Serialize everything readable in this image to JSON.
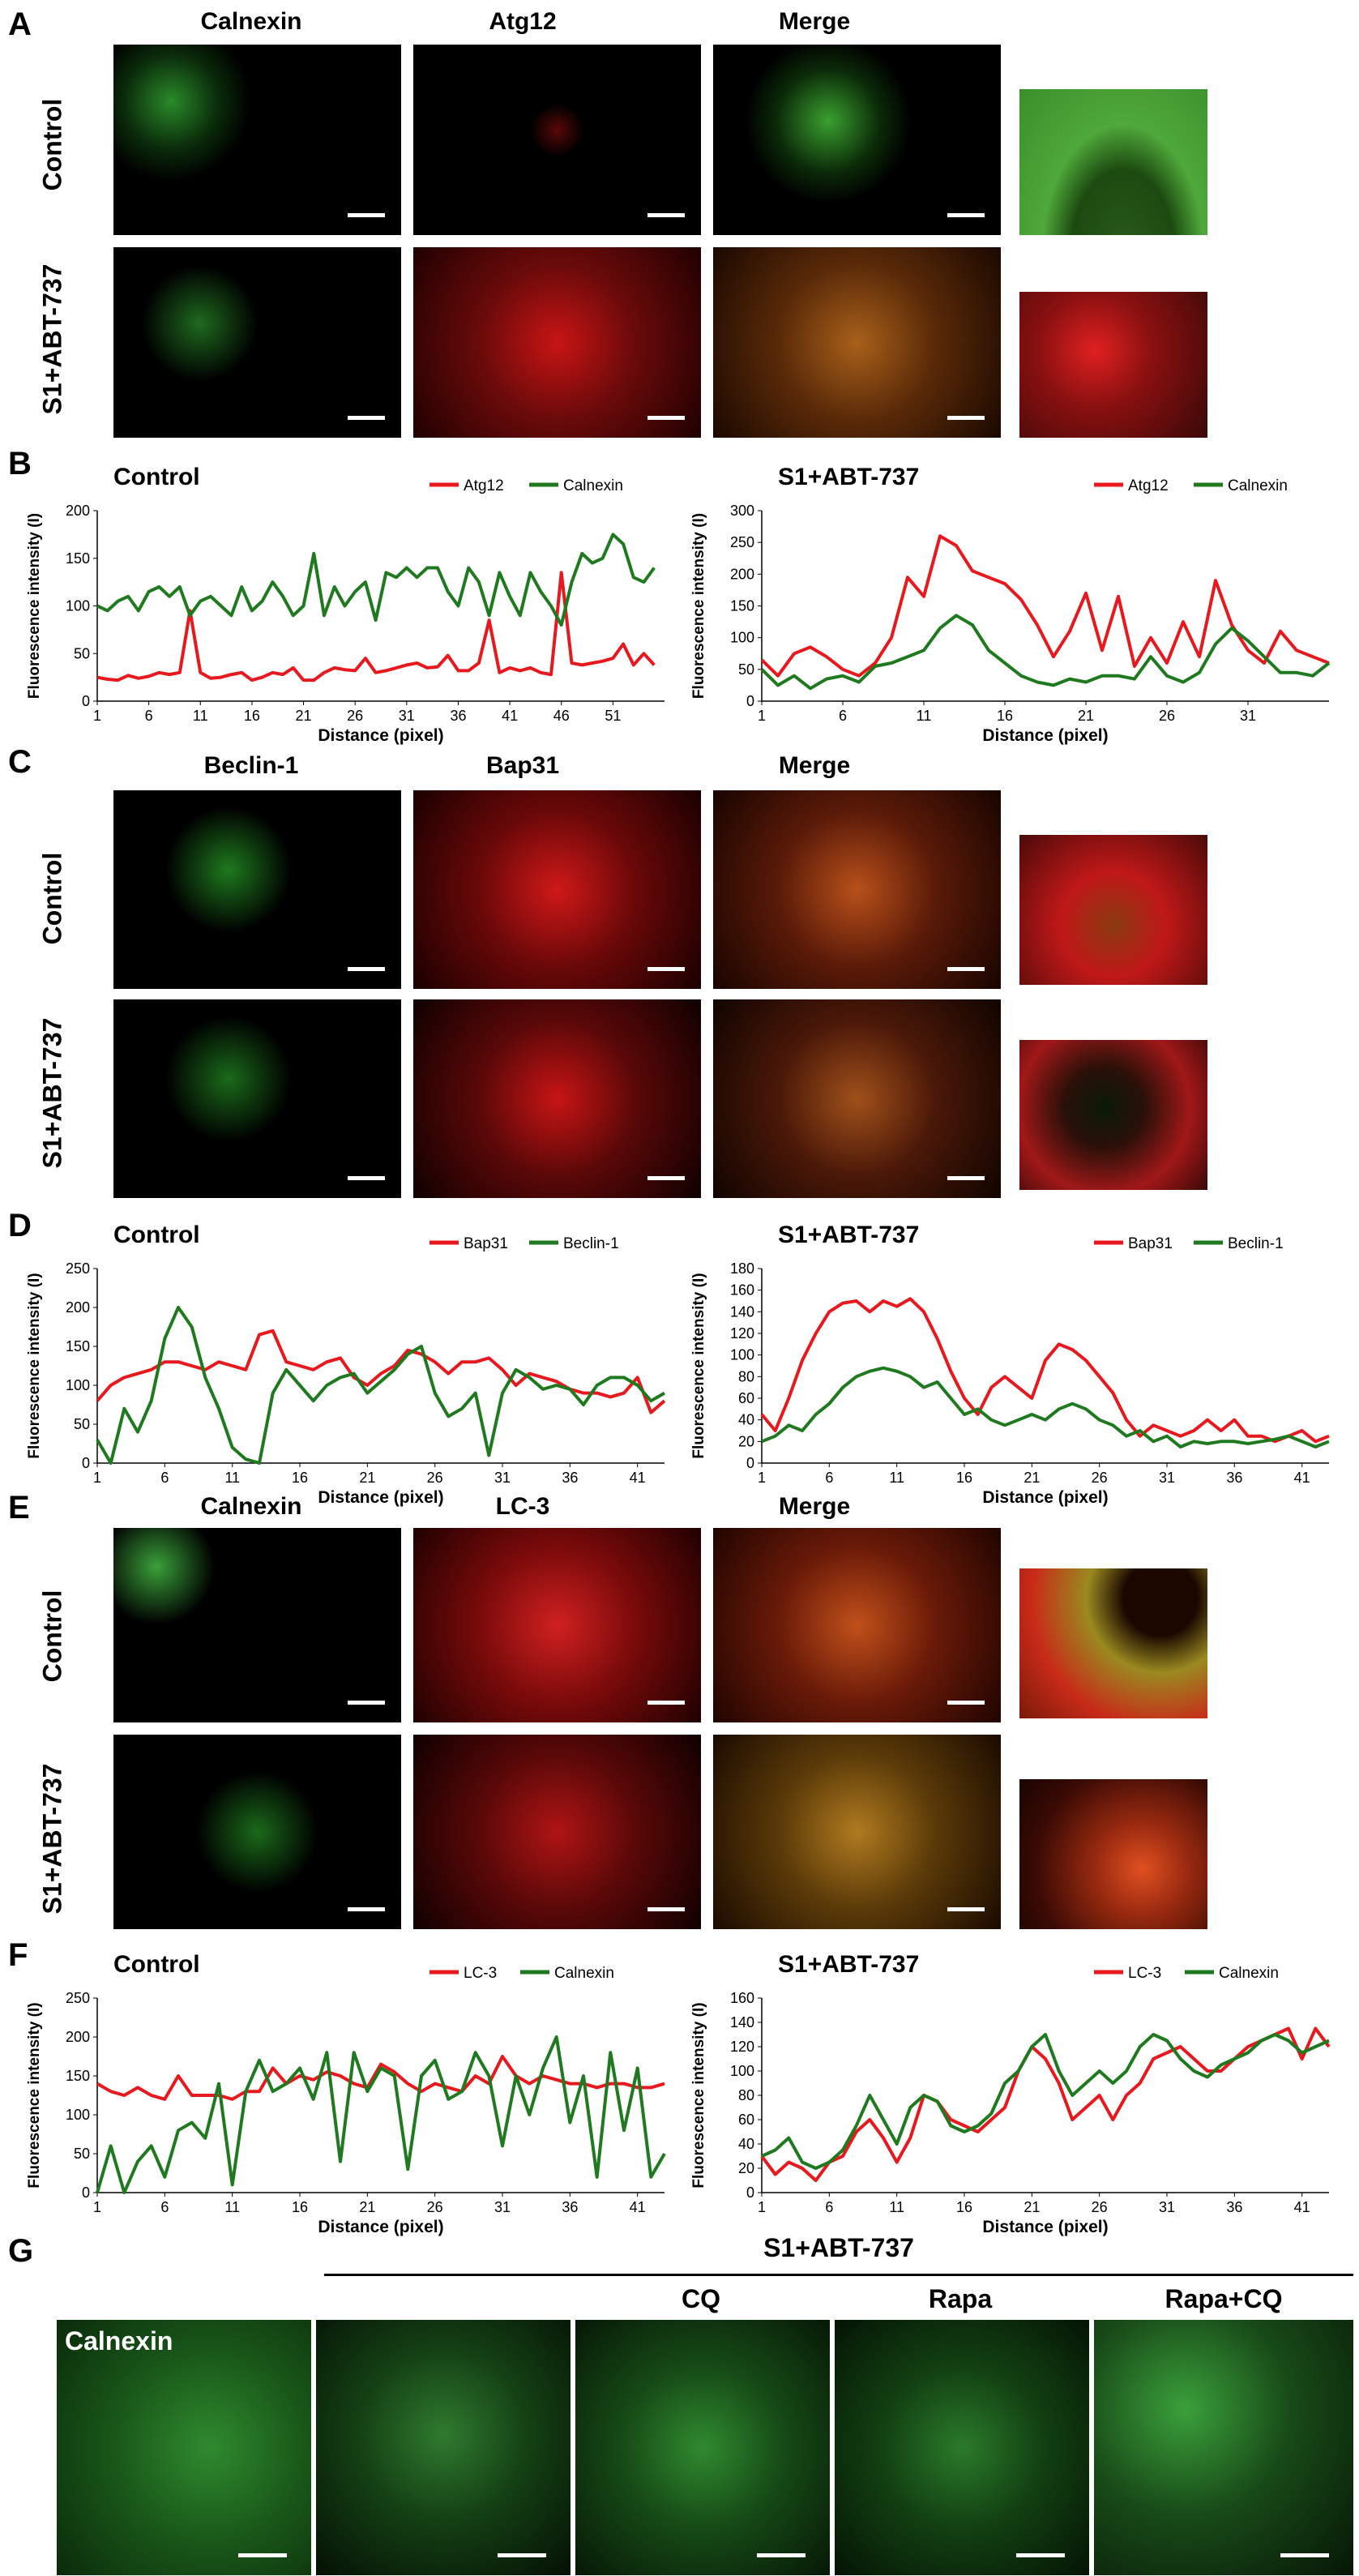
{
  "panels": {
    "A": {
      "letter": "A",
      "headers": [
        "Calnexin",
        "Atg12",
        "Merge"
      ],
      "rows": [
        "Control",
        "S1+ABT-737"
      ]
    },
    "B": {
      "letter": "B"
    },
    "C": {
      "letter": "C",
      "headers": [
        "Beclin-1",
        "Bap31",
        "Merge"
      ],
      "rows": [
        "Control",
        "S1+ABT-737"
      ]
    },
    "D": {
      "letter": "D"
    },
    "E": {
      "letter": "E",
      "headers": [
        "Calnexin",
        "LC-3",
        "Merge"
      ],
      "rows": [
        "Control",
        "S1+ABT-737"
      ]
    },
    "F": {
      "letter": "F"
    },
    "G": {
      "letter": "G",
      "group_label": "S1+ABT-737",
      "labels": [
        "CQ",
        "Rapa",
        "Rapa+CQ"
      ],
      "inset_label": "Calnexin"
    }
  },
  "colors": {
    "red": "#e8191e",
    "green": "#1f7a1f",
    "micro_green": "#2f9a2f",
    "micro_red": "#c81414",
    "micro_merge": "#a88a20"
  },
  "chart_data": [
    {
      "id": "B-control",
      "type": "line",
      "title": "Control",
      "xlabel": "Distance (pixel)",
      "ylabel": "Fluorescence intensity (I)",
      "ylim": [
        0,
        200
      ],
      "yticks": [
        0,
        50,
        100,
        150,
        200
      ],
      "xticks": [
        1,
        6,
        11,
        16,
        21,
        26,
        31,
        36,
        41,
        46,
        51
      ],
      "xmax": 56,
      "legend": "top-right",
      "series": [
        {
          "name": "Atg12",
          "color": "#e8191e",
          "values": [
            25,
            23,
            22,
            27,
            24,
            26,
            30,
            28,
            30,
            95,
            30,
            24,
            25,
            28,
            30,
            22,
            25,
            30,
            28,
            35,
            22,
            22,
            30,
            35,
            33,
            32,
            45,
            30,
            32,
            35,
            38,
            40,
            35,
            36,
            48,
            32,
            32,
            40,
            85,
            30,
            35,
            32,
            35,
            30,
            28,
            135,
            40,
            38,
            40,
            42,
            45,
            60,
            38,
            50,
            38
          ]
        },
        {
          "name": "Calnexin",
          "color": "#1f7a1f",
          "values": [
            100,
            95,
            105,
            110,
            95,
            115,
            120,
            110,
            120,
            90,
            105,
            110,
            100,
            90,
            120,
            95,
            105,
            125,
            110,
            90,
            100,
            155,
            90,
            120,
            100,
            115,
            125,
            85,
            135,
            130,
            140,
            130,
            140,
            140,
            115,
            100,
            140,
            125,
            90,
            135,
            110,
            90,
            135,
            115,
            100,
            80,
            125,
            155,
            145,
            150,
            175,
            165,
            130,
            125,
            140
          ]
        }
      ]
    },
    {
      "id": "B-s1",
      "type": "line",
      "title": "S1+ABT-737",
      "xlabel": "Distance (pixel)",
      "ylabel": "Fluorescence intensity (I)",
      "ylim": [
        0,
        300
      ],
      "yticks": [
        0,
        50,
        100,
        150,
        200,
        250,
        300
      ],
      "xticks": [
        1,
        6,
        11,
        16,
        21,
        26,
        31
      ],
      "xmax": 36,
      "legend": "top-right",
      "series": [
        {
          "name": "Atg12",
          "color": "#e8191e",
          "values": [
            65,
            40,
            75,
            85,
            70,
            50,
            40,
            60,
            100,
            195,
            165,
            260,
            245,
            205,
            195,
            185,
            160,
            120,
            70,
            110,
            170,
            80,
            165,
            55,
            100,
            60,
            125,
            70,
            190,
            120,
            80,
            60,
            110,
            80,
            70,
            60
          ]
        },
        {
          "name": "Calnexin",
          "color": "#1f7a1f",
          "values": [
            50,
            25,
            40,
            20,
            35,
            40,
            30,
            55,
            60,
            70,
            80,
            115,
            135,
            120,
            80,
            60,
            40,
            30,
            25,
            35,
            30,
            40,
            40,
            35,
            70,
            40,
            30,
            45,
            90,
            115,
            95,
            70,
            45,
            45,
            40,
            60
          ]
        }
      ]
    },
    {
      "id": "D-control",
      "type": "line",
      "title": "Control",
      "xlabel": "Distance (pixel)",
      "ylabel": "Fluorescence intensity (I)",
      "ylim": [
        0,
        250
      ],
      "yticks": [
        0,
        50,
        100,
        150,
        200,
        250
      ],
      "xticks": [
        1,
        6,
        11,
        16,
        21,
        26,
        31,
        36,
        41
      ],
      "xmax": 43,
      "legend": "top-right",
      "series": [
        {
          "name": "Bap31",
          "color": "#e8191e",
          "values": [
            80,
            100,
            110,
            115,
            120,
            130,
            130,
            125,
            120,
            130,
            125,
            120,
            165,
            170,
            130,
            125,
            120,
            130,
            135,
            110,
            100,
            115,
            125,
            145,
            140,
            130,
            115,
            130,
            130,
            135,
            120,
            100,
            115,
            110,
            105,
            95,
            90,
            90,
            85,
            90,
            110,
            65,
            80
          ]
        },
        {
          "name": "Beclin-1",
          "color": "#1f7a1f",
          "values": [
            30,
            0,
            70,
            40,
            80,
            160,
            200,
            175,
            110,
            70,
            20,
            5,
            0,
            90,
            120,
            100,
            80,
            100,
            110,
            115,
            90,
            105,
            120,
            140,
            150,
            90,
            60,
            70,
            90,
            10,
            90,
            120,
            110,
            95,
            100,
            95,
            75,
            100,
            110,
            110,
            100,
            80,
            90
          ]
        }
      ]
    },
    {
      "id": "D-s1",
      "type": "line",
      "title": "S1+ABT-737",
      "xlabel": "Distance (pixel)",
      "ylabel": "Fluorescence intensity (I)",
      "ylim": [
        0,
        180
      ],
      "yticks": [
        0,
        20,
        40,
        60,
        80,
        100,
        120,
        140,
        160,
        180
      ],
      "xticks": [
        1,
        6,
        11,
        16,
        21,
        26,
        31,
        36,
        41
      ],
      "xmax": 43,
      "legend": "top-right",
      "series": [
        {
          "name": "Bap31",
          "color": "#e8191e",
          "values": [
            45,
            30,
            60,
            95,
            120,
            140,
            148,
            150,
            140,
            150,
            145,
            152,
            140,
            115,
            85,
            60,
            45,
            70,
            80,
            70,
            60,
            95,
            110,
            105,
            95,
            80,
            65,
            40,
            25,
            35,
            30,
            25,
            30,
            40,
            30,
            40,
            25,
            25,
            20,
            25,
            30,
            20,
            25
          ]
        },
        {
          "name": "Beclin-1",
          "color": "#1f7a1f",
          "values": [
            20,
            25,
            35,
            30,
            45,
            55,
            70,
            80,
            85,
            88,
            85,
            80,
            70,
            75,
            60,
            45,
            50,
            40,
            35,
            40,
            45,
            40,
            50,
            55,
            50,
            40,
            35,
            25,
            30,
            20,
            25,
            15,
            20,
            18,
            20,
            20,
            18,
            20,
            22,
            25,
            20,
            15,
            20
          ]
        }
      ]
    },
    {
      "id": "F-control",
      "type": "line",
      "title": "Control",
      "xlabel": "Distance (pixel)",
      "ylabel": "Fluorescence intensity (I)",
      "ylim": [
        0,
        250
      ],
      "yticks": [
        0,
        50,
        100,
        150,
        200,
        250
      ],
      "xticks": [
        1,
        6,
        11,
        16,
        21,
        26,
        31,
        36,
        41
      ],
      "xmax": 43,
      "legend": "top-right",
      "series": [
        {
          "name": "LC-3",
          "color": "#e8191e",
          "values": [
            140,
            130,
            125,
            135,
            125,
            120,
            150,
            125,
            125,
            125,
            120,
            130,
            130,
            160,
            140,
            150,
            145,
            155,
            150,
            140,
            135,
            165,
            155,
            140,
            130,
            140,
            135,
            130,
            150,
            140,
            175,
            150,
            140,
            150,
            145,
            140,
            140,
            135,
            140,
            140,
            135,
            135,
            140
          ]
        },
        {
          "name": "Calnexin",
          "color": "#1f7a1f",
          "values": [
            0,
            60,
            0,
            40,
            60,
            20,
            80,
            90,
            70,
            140,
            10,
            130,
            170,
            130,
            140,
            160,
            120,
            180,
            40,
            180,
            130,
            160,
            150,
            30,
            150,
            170,
            120,
            130,
            180,
            150,
            60,
            150,
            100,
            160,
            200,
            90,
            150,
            20,
            180,
            80,
            160,
            20,
            50
          ]
        }
      ]
    },
    {
      "id": "F-s1",
      "type": "line",
      "title": "S1+ABT-737",
      "xlabel": "Distance (pixel)",
      "ylabel": "Fluorescence intensity (I)",
      "ylim": [
        0,
        160
      ],
      "yticks": [
        0,
        20,
        40,
        60,
        80,
        100,
        120,
        140,
        160
      ],
      "xticks": [
        1,
        6,
        11,
        16,
        21,
        26,
        31,
        36,
        41
      ],
      "xmax": 43,
      "legend": "top-right",
      "series": [
        {
          "name": "LC-3",
          "color": "#e8191e",
          "values": [
            30,
            15,
            25,
            20,
            10,
            25,
            30,
            50,
            60,
            45,
            25,
            45,
            80,
            75,
            60,
            55,
            50,
            60,
            70,
            100,
            120,
            110,
            90,
            60,
            70,
            80,
            60,
            80,
            90,
            110,
            115,
            120,
            110,
            100,
            100,
            110,
            120,
            125,
            130,
            135,
            110,
            135,
            120
          ]
        },
        {
          "name": "Calnexin",
          "color": "#1f7a1f",
          "values": [
            30,
            35,
            45,
            25,
            20,
            25,
            35,
            55,
            80,
            60,
            40,
            70,
            80,
            75,
            55,
            50,
            55,
            65,
            90,
            100,
            120,
            130,
            100,
            80,
            90,
            100,
            90,
            100,
            120,
            130,
            125,
            110,
            100,
            95,
            105,
            110,
            115,
            125,
            130,
            125,
            115,
            120,
            125
          ]
        }
      ]
    }
  ]
}
